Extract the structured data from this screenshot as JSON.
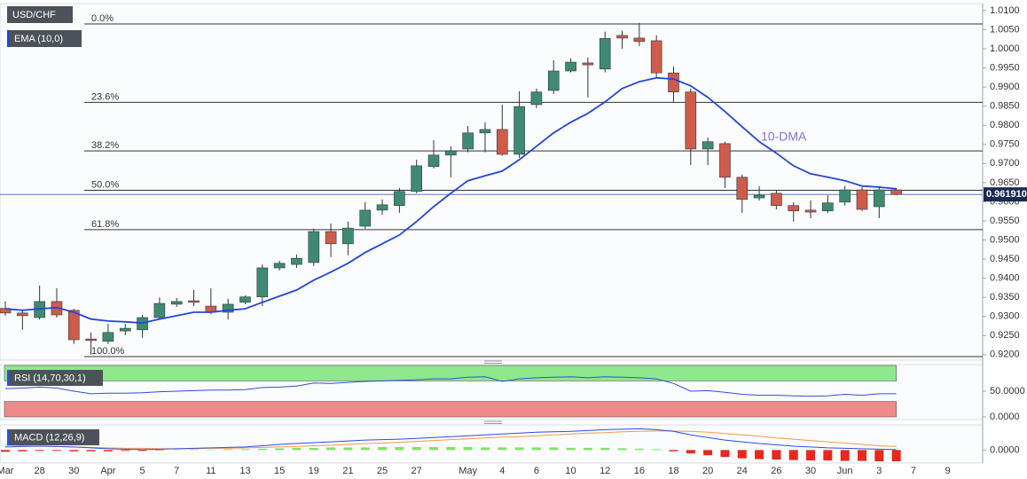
{
  "chart_data": [
    {
      "type": "candlestick",
      "title": "USD/CHF",
      "categories": [
        "Mar",
        null,
        "28",
        null,
        "30",
        null,
        "Apr",
        null,
        "5",
        null,
        "7",
        null,
        "11",
        null,
        "13",
        null,
        "15",
        null,
        "19",
        null,
        "21",
        null,
        "25",
        null,
        "27",
        null,
        null,
        "May",
        null,
        "4",
        null,
        "6",
        null,
        "10",
        null,
        "12",
        null,
        "16",
        null,
        "18",
        null,
        "20",
        null,
        "24",
        null,
        "26",
        null,
        "30",
        null,
        "Jun",
        null,
        "3",
        null,
        "7",
        null,
        "9"
      ],
      "open": [
        0.9321,
        0.9309,
        0.9297,
        0.9339,
        0.9316,
        0.9241,
        0.9235,
        0.9262,
        0.9265,
        0.9297,
        0.9332,
        0.9341,
        0.9327,
        0.9311,
        0.9337,
        0.9351,
        0.9427,
        0.9436,
        0.9441,
        0.9522,
        0.949,
        0.9536,
        0.9578,
        0.959,
        0.9627,
        0.9692,
        0.9722,
        0.9738,
        0.978,
        0.9789,
        0.9724,
        0.9854,
        0.9891,
        0.9942,
        0.9963,
        0.9947,
        1.0035,
        1.0028,
        1.0021,
        0.9937,
        0.9887,
        0.9738,
        0.9752,
        0.9664,
        0.961,
        0.9622,
        0.959,
        0.9578,
        0.9576,
        0.9599,
        0.9631,
        0.9587,
        0.9631,
        null,
        null,
        null
      ],
      "high": [
        0.9339,
        0.9316,
        0.9381,
        0.9374,
        0.932,
        0.9258,
        0.9281,
        0.9281,
        0.9304,
        0.935,
        0.9348,
        0.9369,
        0.9374,
        0.9346,
        0.9355,
        0.9436,
        0.9446,
        0.9462,
        0.9529,
        0.9543,
        0.9548,
        0.9599,
        0.9606,
        0.9636,
        0.971,
        0.9761,
        0.9745,
        0.9798,
        0.9808,
        0.9854,
        0.9889,
        0.9896,
        0.997,
        0.9975,
        0.9977,
        1.0045,
        1.0047,
        1.0068,
        1.0035,
        0.9954,
        0.9896,
        0.9768,
        0.9757,
        0.9671,
        0.9641,
        0.9631,
        0.9599,
        0.9604,
        0.9617,
        0.9641,
        0.9638,
        0.9641,
        0.9636,
        null,
        null,
        null
      ],
      "low": [
        0.9302,
        0.9265,
        0.9292,
        0.9297,
        0.9228,
        0.92,
        0.9228,
        0.9251,
        0.9244,
        0.9295,
        0.9325,
        0.9327,
        0.9306,
        0.9292,
        0.9332,
        0.9327,
        0.942,
        0.9427,
        0.9432,
        0.9455,
        0.946,
        0.9529,
        0.9566,
        0.9571,
        0.9622,
        0.9687,
        0.9664,
        0.9729,
        0.9729,
        0.972,
        0.9715,
        0.9845,
        0.9882,
        0.9938,
        0.9873,
        0.9938,
        1.0,
        1.0007,
        0.9924,
        0.9861,
        0.9696,
        0.9696,
        0.9636,
        0.9571,
        0.9603,
        0.958,
        0.9548,
        0.9557,
        0.9571,
        0.959,
        0.9576,
        0.9557,
        0.9617,
        null,
        null,
        null
      ],
      "close": [
        0.9309,
        0.9302,
        0.9339,
        0.9304,
        0.9239,
        0.9237,
        0.9258,
        0.9269,
        0.9297,
        0.9334,
        0.9339,
        0.9337,
        0.9311,
        0.9332,
        0.9351,
        0.9427,
        0.9439,
        0.9452,
        0.9522,
        0.949,
        0.9531,
        0.9578,
        0.9592,
        0.9627,
        0.9694,
        0.9722,
        0.9733,
        0.978,
        0.9789,
        0.9724,
        0.9849,
        0.9887,
        0.9942,
        0.9965,
        0.9958,
        1.0027,
        1.0028,
        1.0019,
        0.9937,
        0.9887,
        0.9738,
        0.9757,
        0.9664,
        0.9606,
        0.9617,
        0.959,
        0.9576,
        0.9573,
        0.9597,
        0.9631,
        0.958,
        0.9631,
        0.9619,
        null,
        null,
        null
      ],
      "up_color": "#3f8a73",
      "down_color": "#cf5b4b",
      "wick_color": "#333333",
      "overlay": {
        "name": "EMA (10,0)",
        "color": "#2346d8",
        "values": [
          0.932,
          0.9316,
          0.932,
          0.9323,
          0.9311,
          0.9293,
          0.9288,
          0.9286,
          0.9283,
          0.9293,
          0.9302,
          0.9311,
          0.9311,
          0.9316,
          0.932,
          0.9337,
          0.9353,
          0.9369,
          0.9395,
          0.9416,
          0.9439,
          0.9467,
          0.949,
          0.9513,
          0.9548,
          0.9587,
          0.9622,
          0.9655,
          0.9668,
          0.968,
          0.971,
          0.9745,
          0.978,
          0.9808,
          0.9831,
          0.9861,
          0.9896,
          0.9914,
          0.9924,
          0.9921,
          0.9903,
          0.9873,
          0.9836,
          0.9796,
          0.9757,
          0.9727,
          0.9694,
          0.9673,
          0.9664,
          0.9655,
          0.9641,
          0.9638,
          0.9634,
          null,
          null,
          null
        ]
      },
      "annotation": "10-DMA",
      "annotation_color": "#8a6fd6",
      "fib_levels": [
        {
          "value": 1.0065,
          "label": "0.0%"
        },
        {
          "value": 0.986,
          "label": "23.6%"
        },
        {
          "value": 0.9733,
          "label": "38.2%"
        },
        {
          "value": 0.963,
          "label": "50.0%"
        },
        {
          "value": 0.9527,
          "label": "61.8%"
        },
        {
          "value": 0.9195,
          "label": "100.0%"
        }
      ],
      "last_price": {
        "value": 0.96191,
        "label": "0.961910"
      },
      "last_price_color": "#1c2a52",
      "ylim": [
        0.9188,
        1.0116
      ],
      "yticks": [
        {
          "value": 0.92,
          "label": "0.9200"
        },
        {
          "value": 0.925,
          "label": "0.9250"
        },
        {
          "value": 0.93,
          "label": "0.9300"
        },
        {
          "value": 0.935,
          "label": "0.9350"
        },
        {
          "value": 0.94,
          "label": "0.9400"
        },
        {
          "value": 0.945,
          "label": "0.9450"
        },
        {
          "value": 0.95,
          "label": "0.9500"
        },
        {
          "value": 0.955,
          "label": "0.9550"
        },
        {
          "value": 0.96,
          "label": "0.9600"
        },
        {
          "value": 0.965,
          "label": "0.9650"
        },
        {
          "value": 0.97,
          "label": "0.9700"
        },
        {
          "value": 0.975,
          "label": "0.9750"
        },
        {
          "value": 0.98,
          "label": "0.9800"
        },
        {
          "value": 0.985,
          "label": "0.9850"
        },
        {
          "value": 0.99,
          "label": "0.9900"
        },
        {
          "value": 0.995,
          "label": "0.9950"
        },
        {
          "value": 1.0,
          "label": "1.0000"
        },
        {
          "value": 1.005,
          "label": "1.0050"
        },
        {
          "value": 1.01,
          "label": "1.0100"
        }
      ],
      "grid": false
    },
    {
      "type": "line",
      "title": "RSI (14,70,30,1)",
      "color": "#2f4fd8",
      "values": [
        55,
        56,
        58,
        56,
        50,
        45,
        46,
        46,
        47,
        49,
        50,
        51,
        52,
        52,
        53,
        57,
        58,
        60,
        66,
        65,
        67,
        69,
        70,
        71,
        72,
        74,
        74,
        77,
        78,
        69,
        74,
        76,
        77,
        78,
        76,
        78,
        77,
        76,
        74,
        65,
        50,
        51,
        48,
        44,
        42,
        42,
        41,
        40,
        41,
        44,
        42,
        45,
        45,
        null,
        null,
        null
      ],
      "bands": [
        {
          "from": 70,
          "to": 100,
          "color": "#8fe88b"
        },
        {
          "from": 0,
          "to": 30,
          "color": "#ee8a8a"
        }
      ],
      "ylim": [
        0,
        100
      ],
      "yticks": [
        {
          "value": 0,
          "label": "0.0000"
        },
        {
          "value": 50,
          "label": "50.0000"
        }
      ]
    },
    {
      "type": "macd",
      "title": "MACD (12,26,9)",
      "macd_color": "#2f4fd8",
      "signal_color": "#f29a4e",
      "hist_up_color": "#7fe36b",
      "hist_down_color": "#e8281c",
      "macd": [
        0.0007,
        0.0008,
        0.0009,
        0.0008,
        0.0007,
        0.0005,
        0.0003,
        0.0002,
        0.0001,
        0.0002,
        0.0003,
        0.0004,
        0.0005,
        0.0006,
        0.0007,
        0.001,
        0.0013,
        0.0015,
        0.0017,
        0.0019,
        0.0021,
        0.0023,
        0.0024,
        0.0025,
        0.0027,
        0.0029,
        0.0031,
        0.0033,
        0.0035,
        0.0037,
        0.0039,
        0.0041,
        0.0042,
        0.0043,
        0.0045,
        0.0047,
        0.0048,
        0.0049,
        0.0047,
        0.0043,
        0.0035,
        0.0029,
        0.0023,
        0.0019,
        0.0015,
        0.0012,
        0.0009,
        0.0007,
        0.0005,
        0.0004,
        0.0003,
        0.0002,
        0.0001,
        null,
        null,
        null
      ],
      "signal": [
        0.0011,
        0.001,
        0.0009,
        0.0008,
        0.0007,
        0.0006,
        0.0005,
        0.0004,
        0.0004,
        0.0003,
        0.0003,
        0.0003,
        0.0004,
        0.0004,
        0.0005,
        0.0006,
        0.0007,
        0.0008,
        0.001,
        0.0011,
        0.0013,
        0.0015,
        0.0016,
        0.0018,
        0.002,
        0.0022,
        0.0024,
        0.0026,
        0.0028,
        0.003,
        0.0031,
        0.0033,
        0.0035,
        0.0037,
        0.0039,
        0.004,
        0.0042,
        0.0043,
        0.0044,
        0.0044,
        0.0043,
        0.0041,
        0.0038,
        0.0035,
        0.0032,
        0.0028,
        0.0025,
        0.0022,
        0.0019,
        0.0016,
        0.0013,
        0.001,
        0.0008,
        null,
        null,
        null
      ],
      "histogram": [
        -0.0004,
        -0.0003,
        -0.0002,
        -0.0002,
        -0.0003,
        -0.0003,
        -0.0003,
        -0.0002,
        -0.0002,
        -0.0001,
        0.0001,
        0.0001,
        0.0001,
        0.0002,
        0.0002,
        0.0003,
        0.0004,
        0.0005,
        0.0005,
        0.0006,
        0.0006,
        0.0006,
        0.0007,
        0.0007,
        0.0007,
        0.0007,
        0.0007,
        0.0007,
        0.0006,
        0.0006,
        0.0006,
        0.0006,
        0.0006,
        0.0005,
        0.0005,
        0.0005,
        0.0004,
        0.0003,
        0.0002,
        -0.0003,
        -0.0008,
        -0.0012,
        -0.0016,
        -0.0019,
        -0.0021,
        -0.0022,
        -0.0023,
        -0.0024,
        -0.0024,
        -0.0025,
        -0.0025,
        -0.0026,
        -0.0026,
        null,
        null,
        null
      ],
      "ylim": [
        -0.003,
        0.0056
      ],
      "yticks": [
        {
          "value": 0,
          "label": "0.0000"
        }
      ]
    }
  ]
}
